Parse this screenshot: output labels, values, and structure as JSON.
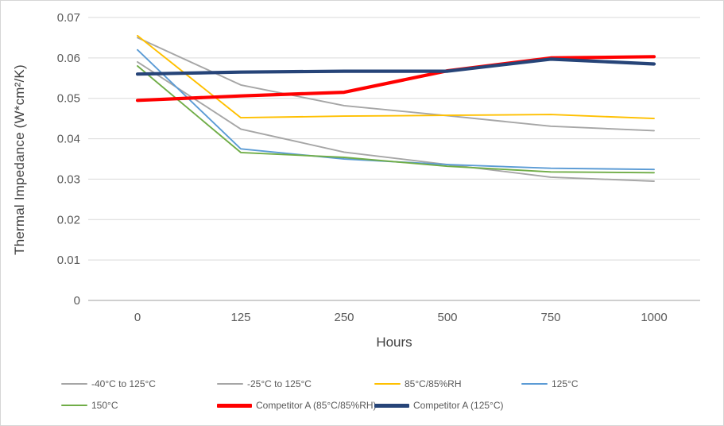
{
  "chart_data": {
    "type": "line",
    "title": "",
    "xlabel": "Hours",
    "ylabel": "Thermal Impedance (W*cm²/K)",
    "categories": [
      "0",
      "125",
      "250",
      "500",
      "750",
      "1000"
    ],
    "y_ticks": [
      "0",
      "0.01",
      "0.02",
      "0.03",
      "0.04",
      "0.05",
      "0.06",
      "0.07"
    ],
    "ylim": [
      0,
      0.07
    ],
    "grid": "horizontal-only",
    "legend_position": "bottom",
    "series": [
      {
        "name": "-40°C to 125°C",
        "color": "#A6A6A6",
        "thick": false,
        "values": [
          0.065,
          0.0533,
          0.0482,
          0.0457,
          0.0431,
          0.042
        ]
      },
      {
        "name": "-25°C to 125°C",
        "color": "#A6A6A6",
        "thick": false,
        "values": [
          0.059,
          0.0424,
          0.0367,
          0.0336,
          0.0305,
          0.0295
        ]
      },
      {
        "name": "85°C/85%RH",
        "color": "#FFC000",
        "thick": false,
        "values": [
          0.0655,
          0.0452,
          0.0456,
          0.0458,
          0.046,
          0.045
        ]
      },
      {
        "name": "125°C",
        "color": "#5B9BD5",
        "thick": false,
        "values": [
          0.062,
          0.0375,
          0.035,
          0.0336,
          0.0327,
          0.0324
        ]
      },
      {
        "name": "150°C",
        "color": "#70AD47",
        "thick": false,
        "values": [
          0.058,
          0.0366,
          0.0354,
          0.0332,
          0.0318,
          0.0316
        ]
      },
      {
        "name": "Competitor A (85°C/85%RH)",
        "color": "#FF0000",
        "thick": true,
        "values": [
          0.0495,
          0.0506,
          0.0515,
          0.0568,
          0.06,
          0.0603
        ]
      },
      {
        "name": "Competitor A (125°C)",
        "color": "#264478",
        "thick": true,
        "values": [
          0.056,
          0.0565,
          0.0567,
          0.0567,
          0.0597,
          0.0585
        ]
      }
    ]
  },
  "style_colors": {
    "gridline": "#D9D9D9",
    "axis_line": "#BFBFBF",
    "tick_text": "#595959",
    "title_text": "#404040"
  }
}
